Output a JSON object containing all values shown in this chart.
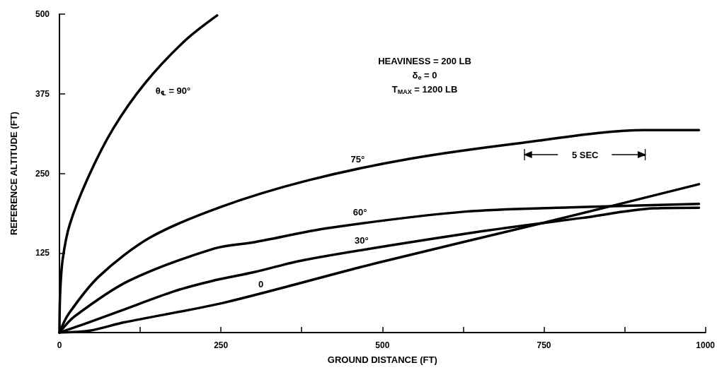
{
  "chart_data": {
    "type": "line",
    "xlabel": "GROUND DISTANCE (FT)",
    "ylabel": "REFERENCE ALTITUDE (FT)",
    "xlim": [
      0,
      1000
    ],
    "xticks": [
      0,
      {
        "value": 125,
        "label": null
      },
      250,
      {
        "value": 375,
        "label": null
      },
      500,
      {
        "value": 625,
        "label": null
      },
      750,
      {
        "value": 875,
        "label": null
      },
      1000
    ],
    "ylim": [
      0,
      500
    ],
    "yticks": [
      {
        "value": 0,
        "label": null
      },
      125,
      250,
      375,
      500
    ],
    "grid": false,
    "legend": false,
    "marker": "none",
    "line_style": "solid",
    "series": [
      {
        "name": "θ$_{℄}$ = 90°",
        "color": "#000000",
        "x": [
          0,
          1,
          5,
          16,
          45,
          83,
          132,
          195,
          244
        ],
        "values": [
          0,
          60,
          115,
          170,
          245,
          320,
          391,
          459,
          498
        ]
      },
      {
        "name": "75°",
        "color": "#000000",
        "x": [
          0,
          14,
          61,
          140,
          249,
          385,
          543,
          717,
          905,
          990
        ],
        "values": [
          0,
          29,
          88,
          149,
          197,
          239,
          273,
          298,
          318,
          318
        ]
      },
      {
        "name": "60°",
        "color": "#000000",
        "x": [
          0,
          23,
          107,
          240,
          302,
          416,
          629,
          808,
          990
        ],
        "values": [
          0,
          25,
          81,
          132,
          142,
          164,
          190,
          197,
          202
        ]
      },
      {
        "name": "30°",
        "color": "#000000",
        "x": [
          0,
          40,
          94,
          178,
          236,
          302,
          379,
          634,
          809,
          920,
          990
        ],
        "values": [
          0,
          14,
          34,
          65,
          81,
          95,
          114,
          156,
          180,
          195,
          196
        ]
      },
      {
        "name": "0",
        "color": "#000000",
        "x": [
          0,
          47,
          100,
          255,
          490,
          756,
          990
        ],
        "values": [
          0,
          3,
          16,
          47,
          109,
          174,
          233
        ]
      }
    ],
    "annotations": [
      "HEAVINESS = 200 LB",
      "δ$_{e}$ = 0",
      "T$_{MAX}$ = 1200 LB",
      "5 SEC"
    ]
  }
}
